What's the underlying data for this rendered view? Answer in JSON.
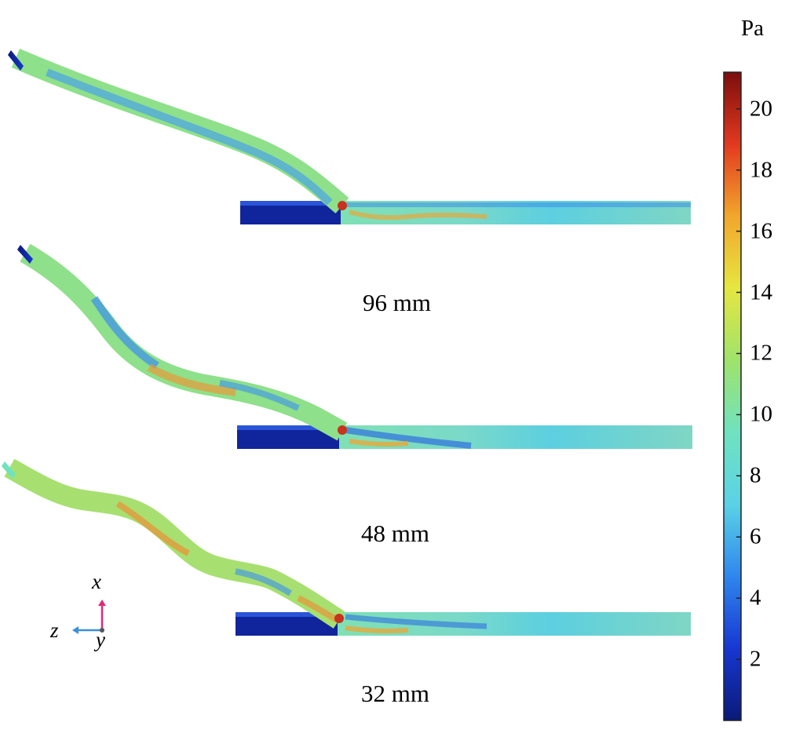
{
  "cases": [
    {
      "id": "96",
      "label": "96 mm"
    },
    {
      "id": "48",
      "label": "48 mm"
    },
    {
      "id": "32",
      "label": "32 mm"
    }
  ],
  "colorbar": {
    "unit": "Pa",
    "min": 0,
    "max": 21.2,
    "ticks": [
      2,
      4,
      6,
      8,
      10,
      12,
      14,
      16,
      18,
      20
    ],
    "colors": [
      "#0a1a78",
      "#1737d2",
      "#2f86ee",
      "#5ad2e6",
      "#6fe2c0",
      "#9fe36a",
      "#e6e640",
      "#f2a62c",
      "#e2391f",
      "#7c0d0d"
    ]
  },
  "triad": {
    "x": "x",
    "y": "y",
    "z": "z",
    "colors": {
      "x": "#e0287a",
      "z": "#3a8fd6",
      "y": "#555555"
    }
  }
}
